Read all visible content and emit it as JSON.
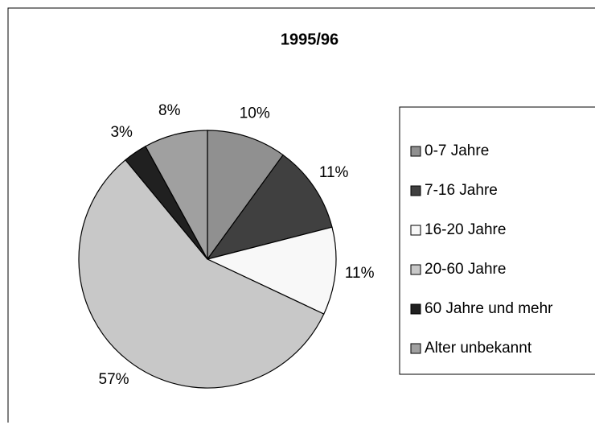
{
  "chart_data": {
    "type": "pie",
    "title": "1995/96",
    "categories": [
      "0-7 Jahre",
      "7-16 Jahre",
      "16-20 Jahre",
      "20-60 Jahre",
      "60 Jahre und mehr",
      "Alter unbekannt"
    ],
    "values": [
      10,
      11,
      11,
      57,
      3,
      8
    ],
    "value_labels": [
      "10%",
      "11%",
      "11%",
      "57%",
      "3%",
      "8%"
    ],
    "colors": [
      "#909090",
      "#404040",
      "#f8f8f8",
      "#c8c8c8",
      "#202020",
      "#a0a0a0"
    ],
    "legend": "right"
  }
}
